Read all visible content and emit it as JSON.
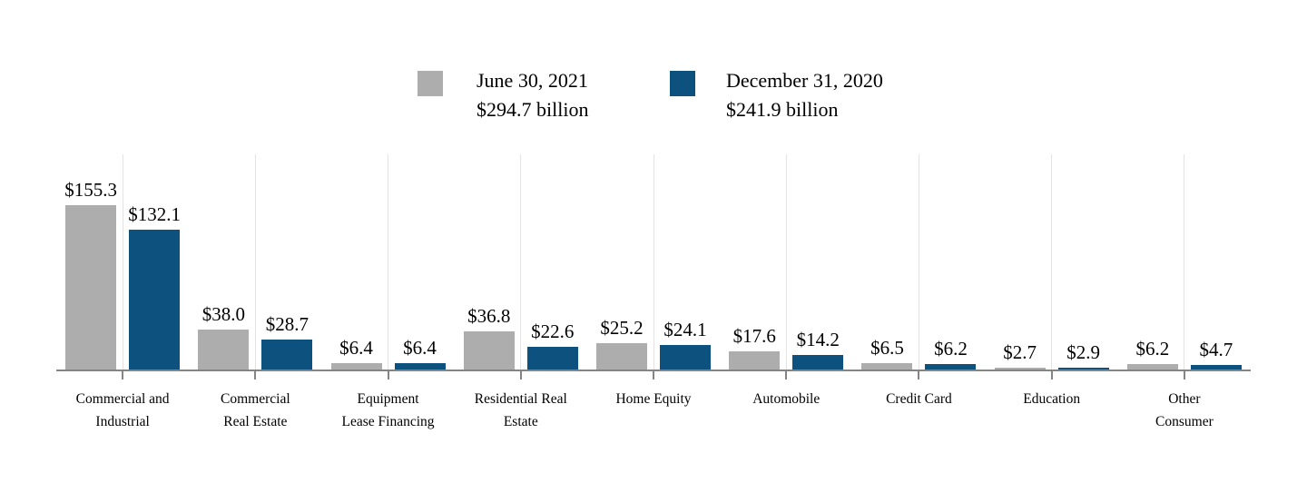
{
  "chart_data": {
    "type": "bar",
    "categories": [
      [
        "Commercial and",
        "Industrial"
      ],
      [
        "Commercial",
        "Real Estate"
      ],
      [
        "Equipment",
        "Lease Financing"
      ],
      [
        "Residential Real",
        "Estate"
      ],
      [
        "Home Equity"
      ],
      [
        "Automobile"
      ],
      [
        "Credit Card"
      ],
      [
        "Education"
      ],
      [
        "Other",
        "Consumer"
      ]
    ],
    "series": [
      {
        "name": "June 30, 2021",
        "total": "$294.7 billion",
        "color": "#adadad",
        "values": [
          155.3,
          38.0,
          6.4,
          36.8,
          25.2,
          17.6,
          6.5,
          2.7,
          6.2
        ]
      },
      {
        "name": "December 31, 2020",
        "total": "$241.9 billion",
        "color": "#0d517e",
        "values": [
          132.1,
          28.7,
          6.4,
          22.6,
          24.1,
          14.2,
          6.2,
          2.9,
          4.7
        ]
      }
    ],
    "value_prefix": "$",
    "value_decimals": 1,
    "title": "",
    "xlabel": "",
    "ylabel": "",
    "ylim": [
      0,
      203
    ],
    "grid": "vertical-at-category-centers",
    "legend_position": "top-center",
    "axis_color": "#848484",
    "gridline_color": "#e3e3e3"
  }
}
